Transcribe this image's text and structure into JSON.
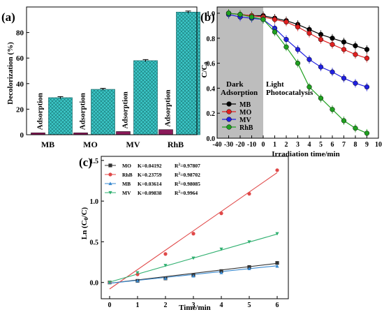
{
  "chart_data": [
    {
      "panel": "(a)",
      "type": "bar",
      "ylabel": "Decolorization (%)",
      "ylim": [
        0,
        100
      ],
      "yticks": [
        0,
        20,
        40,
        60,
        80
      ],
      "categories": [
        "MB",
        "MO",
        "MV",
        "RhB"
      ],
      "bar_annotation": "Adsorption",
      "series": [
        {
          "values": [
            1.5,
            1.5,
            2.5,
            4
          ],
          "color": "#8b1a5a"
        },
        {
          "values": [
            29,
            35.5,
            58,
            96
          ],
          "color": "#3cc8c8"
        }
      ]
    },
    {
      "panel": "(b)",
      "type": "line",
      "xlabel": "Irradiation time/min",
      "ylabel": "C/C0",
      "xlim": [
        -40,
        10
      ],
      "ylim": [
        0,
        1.05
      ],
      "xticks": [
        -40,
        -30,
        -20,
        -10,
        0,
        1,
        2,
        3,
        4,
        5,
        6,
        7,
        8,
        9,
        10
      ],
      "yticks": [
        0.0,
        0.2,
        0.4,
        0.6,
        0.8,
        1.0
      ],
      "shaded_region": [
        -40,
        0
      ],
      "annotations": [
        {
          "text": "Dark",
          "region": "dark"
        },
        {
          "text": "Adsorption",
          "region": "dark"
        },
        {
          "text": "Light",
          "region": "light"
        },
        {
          "text": "Photocatalysis",
          "region": "light"
        }
      ],
      "legend_position": "bottom-left",
      "series": [
        {
          "name": "MB",
          "color": "#000000",
          "x": [
            -30,
            -20,
            -10,
            0,
            1,
            2,
            3,
            4,
            5,
            6,
            7,
            8,
            9
          ],
          "y": [
            1.0,
            0.99,
            0.98,
            0.98,
            0.96,
            0.94,
            0.91,
            0.87,
            0.83,
            0.8,
            0.77,
            0.74,
            0.71
          ]
        },
        {
          "name": "MO",
          "color": "#e02020",
          "x": [
            -30,
            -20,
            -10,
            0,
            1,
            2,
            3,
            4,
            5,
            6,
            7,
            8,
            9
          ],
          "y": [
            1.0,
            0.99,
            0.98,
            0.97,
            0.95,
            0.93,
            0.89,
            0.84,
            0.79,
            0.75,
            0.71,
            0.67,
            0.64
          ]
        },
        {
          "name": "MV",
          "color": "#2020e0",
          "x": [
            -30,
            -20,
            -10,
            0,
            1,
            2,
            3,
            4,
            5,
            6,
            7,
            8,
            9
          ],
          "y": [
            0.99,
            0.97,
            0.96,
            0.95,
            0.88,
            0.79,
            0.71,
            0.63,
            0.57,
            0.53,
            0.48,
            0.44,
            0.41
          ]
        },
        {
          "name": "RhB",
          "color": "#20a020",
          "x": [
            -30,
            -20,
            -10,
            0,
            1,
            2,
            3,
            4,
            5,
            6,
            7,
            8,
            9
          ],
          "y": [
            1.0,
            0.99,
            0.97,
            0.95,
            0.85,
            0.73,
            0.6,
            0.41,
            0.32,
            0.23,
            0.14,
            0.08,
            0.04
          ]
        }
      ]
    },
    {
      "panel": "(c)",
      "type": "scatter",
      "xlabel": "Time/min",
      "ylabel": "Ln (C0/C)",
      "xlim": [
        -0.3,
        6.4
      ],
      "ylim": [
        -0.2,
        1.55
      ],
      "xticks": [
        0,
        1,
        2,
        3,
        4,
        5,
        6
      ],
      "yticks": [
        0.0,
        0.5,
        1.0,
        1.5
      ],
      "legend_position": "top-left",
      "series": [
        {
          "name": "MO",
          "color": "#333333",
          "marker": "square",
          "k": "K=0.04192",
          "r2": "R2=0.97807",
          "x": [
            0,
            1,
            2,
            3,
            4,
            5,
            6
          ],
          "y": [
            0.0,
            0.02,
            0.05,
            0.09,
            0.14,
            0.19,
            0.24
          ],
          "fit": [
            [
              0,
              -0.01
            ],
            [
              6,
              0.235
            ]
          ]
        },
        {
          "name": "RhB",
          "color": "#e04848",
          "marker": "circle",
          "k": "K=0.23759",
          "r2": "R2=0.98702",
          "x": [
            0,
            1,
            2,
            3,
            4,
            5,
            6
          ],
          "y": [
            0.0,
            0.1,
            0.35,
            0.6,
            0.85,
            1.09,
            1.38
          ],
          "fit": [
            [
              0,
              -0.08
            ],
            [
              6,
              1.35
            ]
          ]
        },
        {
          "name": "MB",
          "color": "#3a8ad0",
          "marker": "triangle-up",
          "k": "K=0.03614",
          "r2": "R2=0.98085",
          "x": [
            0,
            1,
            2,
            3,
            4,
            5,
            6
          ],
          "y": [
            0.0,
            0.02,
            0.05,
            0.08,
            0.12,
            0.17,
            0.2
          ],
          "fit": [
            [
              0,
              -0.01
            ],
            [
              6,
              0.205
            ]
          ]
        },
        {
          "name": "MV",
          "color": "#30b070",
          "marker": "triangle-down",
          "k": "K=0.09838",
          "r2": "R2=0.9964",
          "x": [
            0,
            1,
            2,
            3,
            4,
            5,
            6
          ],
          "y": [
            0.0,
            0.12,
            0.21,
            0.3,
            0.41,
            0.5,
            0.6
          ],
          "fit": [
            [
              0,
              0.005
            ],
            [
              6,
              0.595
            ]
          ]
        }
      ]
    }
  ]
}
